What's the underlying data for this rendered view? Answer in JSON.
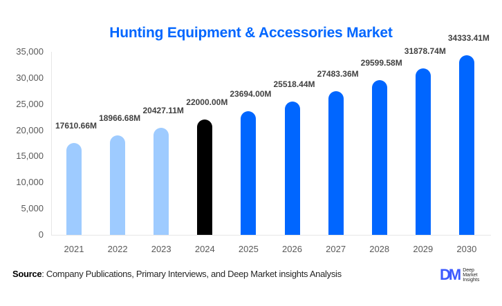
{
  "title": "Hunting Equipment & Accessories Market",
  "chart_data": {
    "type": "bar",
    "title": "Hunting Equipment & Accessories Market",
    "xlabel": "",
    "ylabel": "",
    "ylim": [
      0,
      35000
    ],
    "yticks": [
      "0",
      "5,000",
      "10,000",
      "15,000",
      "20,000",
      "25,000",
      "30,000",
      "35,000"
    ],
    "grid": false,
    "legend": null,
    "categories": [
      "2021",
      "2022",
      "2023",
      "2024",
      "2025",
      "2026",
      "2027",
      "2028",
      "2029",
      "2030"
    ],
    "values": [
      17610.66,
      18966.68,
      20427.11,
      22000.0,
      23694.0,
      25518.44,
      27483.36,
      29599.58,
      31878.74,
      34333.41
    ],
    "value_labels": [
      "17610.66M",
      "18966.68M",
      "20427.11M",
      "22000.00M",
      "23694.00M",
      "25518.44M",
      "27483.36M",
      "29599.58M",
      "31878.74M",
      "34333.41M"
    ],
    "bar_colors": [
      "#9ecbff",
      "#9ecbff",
      "#9ecbff",
      "#000000",
      "#0066ff",
      "#0066ff",
      "#0066ff",
      "#0066ff",
      "#0066ff",
      "#0066ff"
    ],
    "unit": "M"
  },
  "source": {
    "label": "Source",
    "text": ": Company Publications, Primary Interviews, and Deep Market insights Analysis"
  },
  "logo": {
    "mark": "DM",
    "line1": "Deep",
    "line2": "Market",
    "line3": "Insights"
  },
  "colors": {
    "title": "#0066ff",
    "historical": "#9ecbff",
    "base_year": "#000000",
    "forecast": "#0066ff"
  }
}
